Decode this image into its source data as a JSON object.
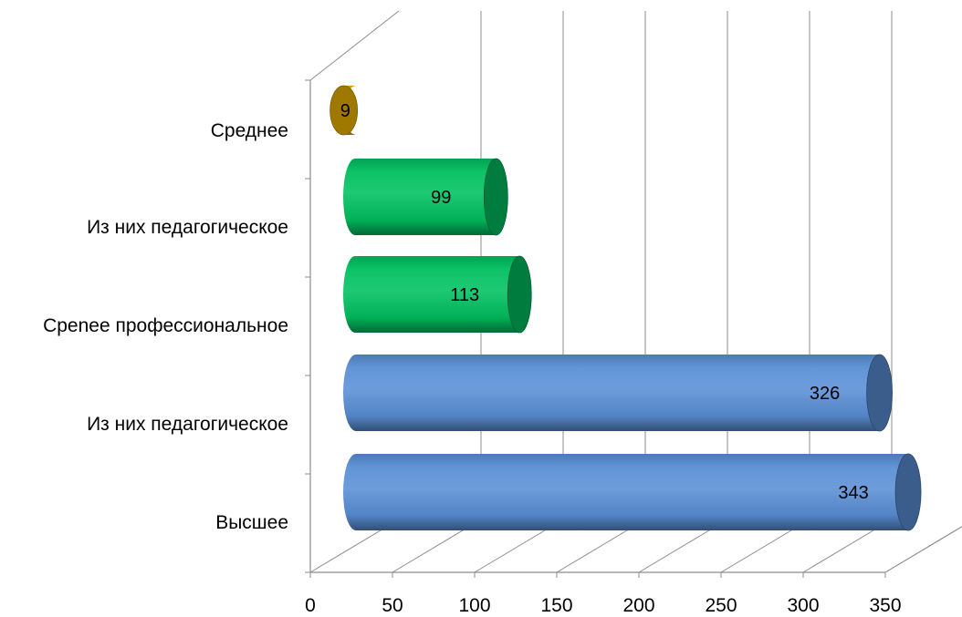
{
  "chart_data": {
    "type": "bar",
    "orientation": "horizontal",
    "style": "3d-cylinder",
    "categories": [
      "Среднее",
      "Из них педагогическое",
      "Срenee профессиональное",
      "Из них педагогическое",
      "Высшее"
    ],
    "values": [
      9,
      99,
      113,
      326,
      343
    ],
    "data_labels": [
      "9",
      "99",
      "113",
      "326",
      "343"
    ],
    "colors": [
      "#F5B800",
      "#00C060",
      "#00C060",
      "#5A8FD6",
      "#5A8FD6"
    ],
    "xlim": [
      0,
      350
    ],
    "x_ticks": [
      0,
      50,
      100,
      150,
      200,
      250,
      300,
      350
    ],
    "x_tick_labels": [
      "0",
      "50",
      "100",
      "150",
      "200",
      "250",
      "300",
      "350"
    ],
    "grid": "vertical",
    "legend": "none",
    "title": "",
    "xlabel": "",
    "ylabel": ""
  }
}
